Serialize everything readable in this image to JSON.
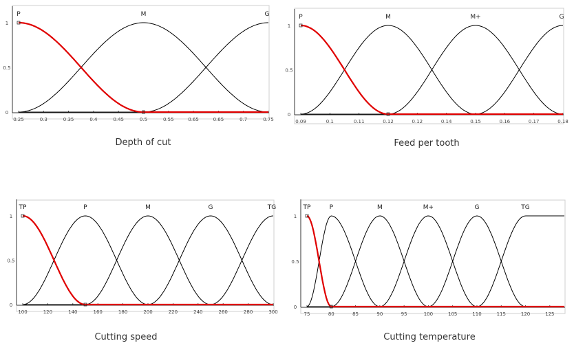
{
  "colors": {
    "highlight": "#e00000",
    "curve": "#000000",
    "axis": "#333333"
  },
  "chart_data": [
    {
      "type": "line",
      "title": "Depth of cut",
      "xlim": [
        0.25,
        0.75
      ],
      "ylim": [
        0,
        1
      ],
      "xticks": [
        "0.25",
        "0.3",
        "0.35",
        "0.4",
        "0.45",
        "0.5",
        "0.55",
        "0.65",
        "0.65",
        "0.7",
        "0.75"
      ],
      "yticks": [
        "0",
        "0.5",
        "1"
      ],
      "ytick_text": [
        "0",
        "0.5",
        "1"
      ],
      "series": [
        {
          "name": "P",
          "highlight": true,
          "shape": "zdown",
          "peak": 0.25,
          "end": 0.5
        },
        {
          "name": "M",
          "shape": "bell",
          "peak": 0.5,
          "start": 0.25,
          "end": 0.75
        },
        {
          "name": "G",
          "shape": "zup",
          "start": 0.5,
          "peak": 0.75
        }
      ]
    },
    {
      "type": "line",
      "title": "Feed per tooth",
      "xlim": [
        0.09,
        0.18
      ],
      "ylim": [
        0,
        1
      ],
      "xticks": [
        "0.09",
        "0.1",
        "0.11",
        "0.12",
        "0.12",
        "0.14",
        "0.15",
        "0.16",
        "0.17",
        "0.18"
      ],
      "yticks": [
        "0",
        "0.5",
        "1"
      ],
      "ytick_text": [
        "0",
        "0.5",
        "1"
      ],
      "series": [
        {
          "name": "P",
          "highlight": true,
          "shape": "zdown",
          "peak": 0.09,
          "end": 0.12
        },
        {
          "name": "M",
          "shape": "bell",
          "peak": 0.12,
          "start": 0.09,
          "end": 0.15
        },
        {
          "name": "M+",
          "shape": "bell",
          "peak": 0.15,
          "start": 0.12,
          "end": 0.18
        },
        {
          "name": "G",
          "shape": "zup",
          "start": 0.15,
          "peak": 0.18
        }
      ]
    },
    {
      "type": "line",
      "title": "Cutting speed",
      "xlim": [
        100,
        300
      ],
      "ylim": [
        0,
        1
      ],
      "xticks": [
        "100",
        "120",
        "140",
        "160",
        "180",
        "200",
        "220",
        "240",
        "260",
        "280",
        "300"
      ],
      "yticks": [
        "0",
        "0.5",
        "1"
      ],
      "ytick_text": [
        "0",
        "0.5",
        "1"
      ],
      "series": [
        {
          "name": "TP",
          "highlight": true,
          "shape": "zdown",
          "peak": 100,
          "end": 150
        },
        {
          "name": "P",
          "shape": "bell",
          "peak": 150,
          "start": 100,
          "end": 200
        },
        {
          "name": "M",
          "shape": "bell",
          "peak": 200,
          "start": 150,
          "end": 250
        },
        {
          "name": "G",
          "shape": "bell",
          "peak": 250,
          "start": 200,
          "end": 300
        },
        {
          "name": "TG",
          "shape": "zup",
          "start": 250,
          "peak": 300
        }
      ]
    },
    {
      "type": "line",
      "title": "Cutting temperature",
      "xlim": [
        75,
        128
      ],
      "ylim": [
        0,
        1
      ],
      "xticks": [
        "75",
        "80",
        "85",
        "90",
        "95",
        "100",
        "105",
        "110",
        "115",
        "120",
        "125"
      ],
      "xtick_values": [
        75,
        80,
        85,
        90,
        95,
        100,
        105,
        110,
        115,
        120,
        125
      ],
      "yticks": [
        "0",
        "0.5",
        "1"
      ],
      "ytick_text": [
        "0",
        "0.5",
        "1"
      ],
      "series": [
        {
          "name": "TP",
          "highlight": true,
          "shape": "zdown",
          "peak": 75,
          "end": 80
        },
        {
          "name": "P",
          "shape": "bell",
          "peak": 80,
          "start": 75,
          "end": 90
        },
        {
          "name": "M",
          "shape": "bell",
          "peak": 90,
          "start": 80,
          "end": 100
        },
        {
          "name": "M+",
          "shape": "bell",
          "peak": 100,
          "start": 90,
          "end": 110
        },
        {
          "name": "G",
          "shape": "bell",
          "peak": 110,
          "start": 100,
          "end": 120
        },
        {
          "name": "TG",
          "shape": "zup_flat",
          "start": 110,
          "peak": 120
        }
      ]
    }
  ]
}
